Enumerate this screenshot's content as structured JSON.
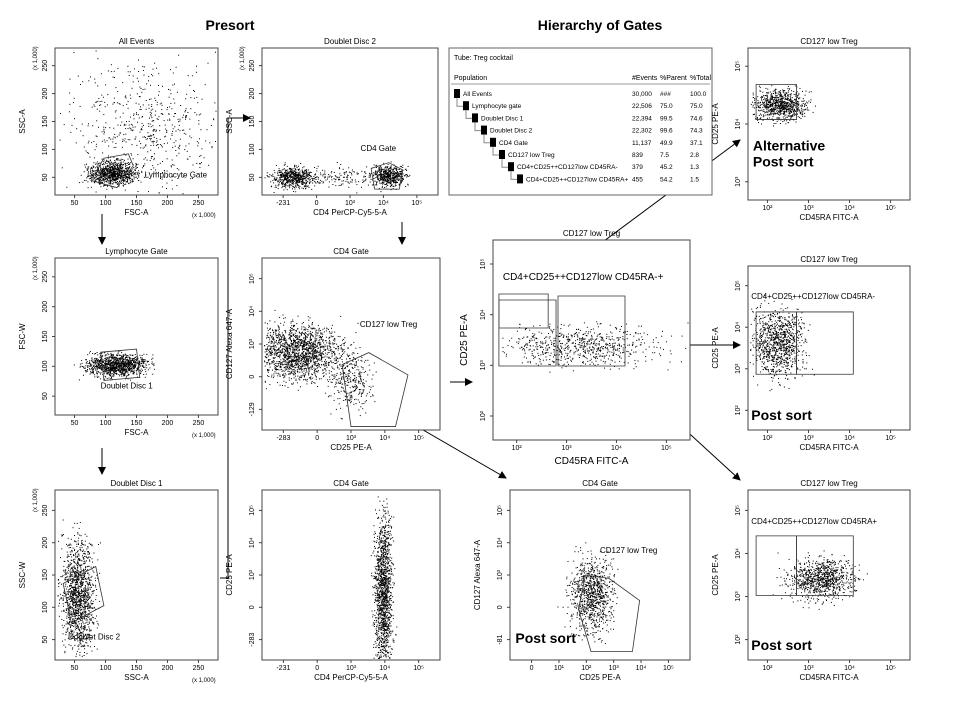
{
  "headings": {
    "presort": "Presort",
    "hierarchy": "Hierarchy of Gates"
  },
  "table": {
    "tube": "Tube: Treg cocktail",
    "columns": [
      "Population",
      "#Events",
      "%Parent",
      "%Total"
    ],
    "rows": [
      [
        "All Events",
        "30,000",
        "###",
        "100.0"
      ],
      [
        "Lymphocyte gate",
        "22,506",
        "75.0",
        "75.0"
      ],
      [
        "Doublet Disc 1",
        "22,394",
        "99.5",
        "74.6"
      ],
      [
        "Doublet Disc 2",
        "22,302",
        "99.6",
        "74.3"
      ],
      [
        "CD4 Gate",
        "11,137",
        "49.9",
        "37.1"
      ],
      [
        "CD127 low Treg",
        "839",
        "7.5",
        "2.8"
      ],
      [
        "CD4+CD25++CD127low CD45RA-",
        "379",
        "45.2",
        "1.3"
      ],
      [
        "CD4+CD25++CD127low CD45RA+",
        "455",
        "54.2",
        "1.5"
      ]
    ]
  },
  "panels": [
    {
      "title": "All Events",
      "y_label": "SSC-A",
      "y_unit": "(x 1,000)",
      "y_ticks": [
        "50",
        "100",
        "150",
        "200",
        "250"
      ],
      "x_label": "FSC-A",
      "x_unit": "(x 1,000)",
      "x_ticks": [
        "50",
        "100",
        "150",
        "200",
        "250"
      ],
      "gates": [
        "Lymphocyte Gate"
      ]
    },
    {
      "title": "Lymphocyte Gate",
      "y_label": "FSC-W",
      "y_unit": "(x 1,000)",
      "y_ticks": [
        "50",
        "100",
        "150",
        "200",
        "250"
      ],
      "x_label": "FSC-A",
      "x_unit": "(x 1,000)",
      "x_ticks": [
        "50",
        "100",
        "150",
        "200",
        "250"
      ],
      "gates": [
        "Doublet Disc 1"
      ]
    },
    {
      "title": "Doublet Disc 1",
      "y_label": "SSC-W",
      "y_unit": "(x 1,000)",
      "y_ticks": [
        "50",
        "100",
        "150",
        "200",
        "250"
      ],
      "x_label": "SSC-A",
      "x_unit": "(x 1,000)",
      "x_ticks": [
        "50",
        "100",
        "150",
        "200",
        "250"
      ],
      "gates": [
        "Doublet Disc 2"
      ]
    },
    {
      "title": "Doublet Disc 2",
      "y_label": "SSC-A",
      "y_unit": "(x 1,000)",
      "y_ticks": [
        "50",
        "100",
        "150",
        "200",
        "250"
      ],
      "x_label": "CD4 PerCP-Cy5-5-A",
      "x_ticks": [
        "-231",
        "0",
        "10³",
        "10⁴",
        "10⁵"
      ],
      "gates": [
        "CD4 Gate"
      ]
    },
    {
      "title": "CD4 Gate",
      "y_label": "CD127 Alexa 647-A",
      "y_ticks": [
        "-129",
        "0",
        "10³",
        "10⁴",
        "10⁵"
      ],
      "x_label": "CD25 PE-A",
      "x_ticks": [
        "-283",
        "0",
        "10³",
        "10⁴",
        "10⁵"
      ],
      "gates": [
        "CD127 low Treg"
      ]
    },
    {
      "title": "CD4 Gate",
      "y_label": "CD25 PE-A",
      "y_ticks": [
        "-283",
        "0",
        "10³",
        "10⁴",
        "10⁵"
      ],
      "x_label": "CD4 PerCP-Cy5-5-A",
      "x_ticks": [
        "-231",
        "0",
        "10³",
        "10⁴",
        "10⁵"
      ]
    },
    {
      "title": "CD127 low Treg",
      "y_label": "CD25 PE-A",
      "y_ticks": [
        "10²",
        "10³",
        "10⁴",
        "10⁵"
      ],
      "x_label": "CD45RA FITC-A",
      "x_ticks": [
        "10²",
        "10³",
        "10⁴",
        "10⁵"
      ],
      "gates": [
        "CD4+CD25++CD127low CD45RA-+"
      ]
    },
    {
      "title": "CD4 Gate",
      "y_label": "CD127 Alexa 647-A",
      "y_ticks": [
        "-81",
        "0",
        "10³",
        "10⁴",
        "10⁵"
      ],
      "x_label": "CD25 PE-A",
      "x_ticks": [
        "0",
        "10¹",
        "10²",
        "10³",
        "10⁴",
        "10⁵"
      ],
      "gates": [
        "CD127 low Treg"
      ],
      "note": [
        "Post sort"
      ]
    },
    {
      "title": "CD127 low Treg",
      "y_label": "CD25 PE-A",
      "y_ticks": [
        "10³",
        "10⁴",
        "10⁵"
      ],
      "x_label": "CD45RA FITC-A",
      "x_ticks": [
        "10²",
        "10³",
        "10⁴",
        "10⁵"
      ],
      "note": [
        "Alternative",
        "Post sort"
      ]
    },
    {
      "title": "CD127 low Treg",
      "y_label": "CD25 PE-A",
      "y_ticks": [
        "10²",
        "10³",
        "10⁴",
        "10⁵"
      ],
      "x_label": "CD45RA FITC-A",
      "x_ticks": [
        "10²",
        "10³",
        "10⁴",
        "10⁵"
      ],
      "gates": [
        "CD4+CD25++CD127low CD45RA-"
      ],
      "note": [
        "Post sort"
      ]
    },
    {
      "title": "CD127 low Treg",
      "y_label": "CD25 PE-A",
      "y_ticks": [
        "10²",
        "10³",
        "10⁴",
        "10⁵"
      ],
      "x_label": "CD45RA FITC-A",
      "x_ticks": [
        "10²",
        "10³",
        "10⁴",
        "10⁵"
      ],
      "gates": [
        "CD4+CD25++CD127low CD45RA+"
      ],
      "note": [
        "Post sort"
      ]
    }
  ]
}
